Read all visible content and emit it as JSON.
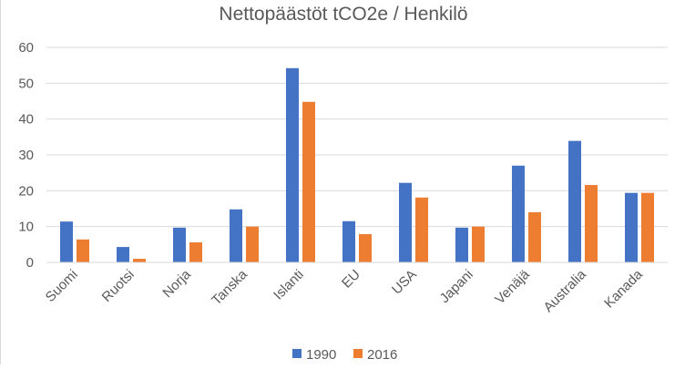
{
  "chart_data": {
    "type": "bar",
    "title": "Nettopäästöt tCO2e / Henkilö",
    "xlabel": "",
    "ylabel": "",
    "categories": [
      "Suomi",
      "Ruotsi",
      "Norja",
      "Tanska",
      "Islanti",
      "EU",
      "USA",
      "Japani",
      "Venäjä",
      "Australia",
      "Kanada"
    ],
    "series": [
      {
        "name": "1990",
        "color": "#4472c4",
        "values": [
          11.4,
          4.3,
          9.7,
          14.8,
          54.2,
          11.5,
          22.2,
          9.7,
          27.0,
          33.9,
          19.4
        ]
      },
      {
        "name": "2016",
        "color": "#ed7d31",
        "values": [
          6.4,
          1.0,
          5.6,
          10.0,
          44.8,
          7.9,
          18.1,
          10.0,
          14.0,
          21.6,
          19.4
        ]
      }
    ],
    "yticks": [
      0,
      10,
      20,
      30,
      40,
      50,
      60
    ],
    "ylim": [
      0,
      60
    ],
    "grid": true,
    "legend_position": "bottom"
  }
}
